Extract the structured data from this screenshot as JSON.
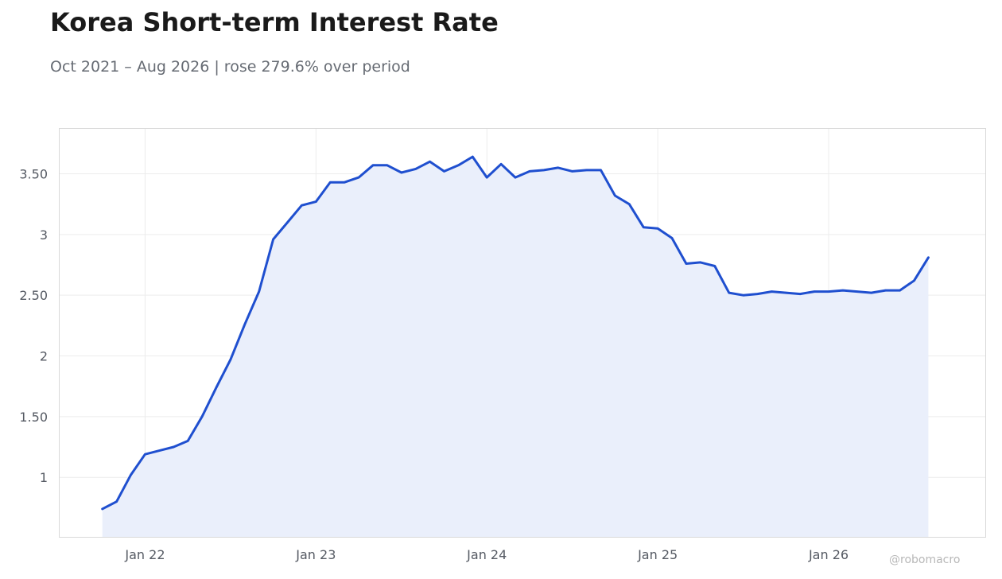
{
  "title": "Korea Short-term Interest Rate",
  "subtitle": "Oct 2021 – Aug 2026 | rose 279.6% over period",
  "watermark": "@robomacro",
  "colors": {
    "line": "#1f4fcf",
    "fill": "#eaeffb",
    "grid": "#ececec",
    "frame": "#d9d9d9"
  },
  "chart_data": {
    "type": "area",
    "title": "Korea Short-term Interest Rate",
    "subtitle": "Oct 2021 – Aug 2026 | rose 279.6% over period",
    "xlabel": "",
    "ylabel": "",
    "x_ticks": [
      "Jan 22",
      "Jan 23",
      "Jan 24",
      "Jan 25",
      "Jan 26"
    ],
    "x_tick_dates": [
      "2022-01",
      "2023-01",
      "2024-01",
      "2025-01",
      "2026-01"
    ],
    "y_ticks": [
      1,
      1.5,
      2,
      2.5,
      3,
      3.5
    ],
    "y_tick_labels": [
      "1",
      "1.50",
      "2",
      "2.50",
      "3",
      "3.50"
    ],
    "xlim": [
      "2021-07",
      "2026-12"
    ],
    "ylim": [
      0.51,
      3.87
    ],
    "grid": true,
    "series": [
      {
        "x": [
          "2021-10",
          "2021-11",
          "2021-12",
          "2022-01",
          "2022-02",
          "2022-03",
          "2022-04",
          "2022-05",
          "2022-06",
          "2022-07",
          "2022-08",
          "2022-09",
          "2022-10",
          "2022-11",
          "2022-12",
          "2023-01",
          "2023-02",
          "2023-03",
          "2023-04",
          "2023-05",
          "2023-06",
          "2023-07",
          "2023-08",
          "2023-09",
          "2023-10",
          "2023-11",
          "2023-12",
          "2024-01",
          "2024-02",
          "2024-03",
          "2024-04",
          "2024-05",
          "2024-06",
          "2024-07",
          "2024-08",
          "2024-09",
          "2024-10",
          "2024-11",
          "2024-12",
          "2025-01",
          "2025-02",
          "2025-03",
          "2025-04",
          "2025-05",
          "2025-06",
          "2025-07",
          "2025-08",
          "2025-09",
          "2025-10",
          "2025-11",
          "2025-12",
          "2026-01",
          "2026-02",
          "2026-03",
          "2026-04",
          "2026-05",
          "2026-06",
          "2026-07",
          "2026-08"
        ],
        "values": [
          0.74,
          0.8,
          1.02,
          1.19,
          1.22,
          1.25,
          1.3,
          1.5,
          1.74,
          1.97,
          2.26,
          2.53,
          2.96,
          3.1,
          3.24,
          3.27,
          3.43,
          3.43,
          3.47,
          3.57,
          3.57,
          3.51,
          3.54,
          3.6,
          3.52,
          3.57,
          3.64,
          3.47,
          3.58,
          3.47,
          3.52,
          3.53,
          3.55,
          3.52,
          3.53,
          3.53,
          3.32,
          3.25,
          3.06,
          3.05,
          2.97,
          2.76,
          2.77,
          2.74,
          2.52,
          2.5,
          2.51,
          2.53,
          2.52,
          2.51,
          2.53,
          2.53,
          2.54,
          2.53,
          2.52,
          2.54,
          2.54,
          2.62,
          2.81
        ]
      }
    ]
  }
}
